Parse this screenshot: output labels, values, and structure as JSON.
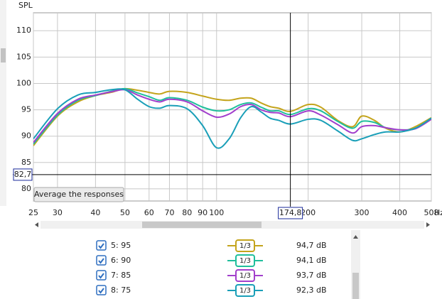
{
  "chart_data": {
    "type": "line",
    "ylabel": "SPL",
    "xunit": "Hz",
    "xscale": "log",
    "xlim": [
      25,
      508
    ],
    "ylim": [
      77.7,
      113.4
    ],
    "xticks": [
      25,
      30,
      40,
      50,
      60,
      70,
      80,
      90,
      100,
      200,
      300,
      400,
      508
    ],
    "yticks": [
      80,
      85,
      90,
      95,
      100,
      105,
      110
    ],
    "grid": true,
    "x": [
      25,
      30,
      35,
      40,
      45,
      50,
      55,
      60,
      65,
      70,
      80,
      90,
      100,
      110,
      120,
      130,
      140,
      150,
      160,
      175,
      200,
      220,
      250,
      280,
      300,
      330,
      360,
      400,
      450,
      508
    ],
    "series": [
      {
        "name": "5: 95",
        "color": "#c4a41c",
        "checked": true,
        "smoothing": "1/3",
        "cursor_reading": "94,7 dB",
        "values": [
          88.2,
          93.8,
          96.5,
          97.7,
          98.3,
          99.0,
          98.7,
          98.3,
          98.0,
          98.5,
          98.3,
          97.6,
          97.0,
          96.8,
          97.2,
          97.2,
          96.3,
          95.6,
          95.3,
          94.7,
          96.0,
          95.5,
          93.0,
          91.8,
          93.8,
          93.0,
          91.5,
          90.8,
          91.8,
          93.5
        ]
      },
      {
        "name": "6: 90",
        "color": "#1fbf9c",
        "checked": true,
        "smoothing": "1/3",
        "cursor_reading": "94,1 dB",
        "values": [
          88.5,
          94.0,
          96.8,
          97.7,
          98.5,
          99.0,
          98.2,
          97.5,
          96.8,
          97.3,
          96.8,
          95.5,
          94.8,
          95.0,
          96.0,
          96.3,
          95.5,
          94.8,
          94.8,
          94.1,
          95.2,
          94.8,
          92.8,
          91.5,
          92.8,
          92.6,
          91.6,
          91.2,
          91.5,
          93.4
        ]
      },
      {
        "name": "7: 85",
        "color": "#a23fcc",
        "checked": true,
        "smoothing": "1/3",
        "cursor_reading": "93,7 dB",
        "values": [
          88.8,
          94.3,
          97.0,
          97.8,
          98.4,
          98.8,
          97.8,
          97.0,
          96.5,
          97.0,
          96.5,
          94.8,
          93.6,
          94.2,
          95.6,
          96.0,
          95.0,
          94.5,
          94.4,
          93.7,
          94.8,
          94.0,
          92.2,
          90.6,
          91.8,
          92.0,
          91.6,
          91.2,
          91.4,
          93.2
        ]
      },
      {
        "name": "8: 75",
        "color": "#1a9fb8",
        "checked": true,
        "smoothing": "1/3",
        "cursor_reading": "92,3 dB",
        "values": [
          89.5,
          95.2,
          97.8,
          98.3,
          98.8,
          98.8,
          97.0,
          95.6,
          95.3,
          95.8,
          95.2,
          92.0,
          87.8,
          89.5,
          93.5,
          95.6,
          94.6,
          93.4,
          93.0,
          92.3,
          93.2,
          93.0,
          91.0,
          89.2,
          89.5,
          90.3,
          90.8,
          90.8,
          91.5,
          93.4
        ]
      }
    ],
    "cursor": {
      "x": {
        "value": 174.8,
        "label": "174,8"
      },
      "y": {
        "value": 82.7,
        "label": "82,7"
      }
    },
    "button": "Average the responses"
  }
}
